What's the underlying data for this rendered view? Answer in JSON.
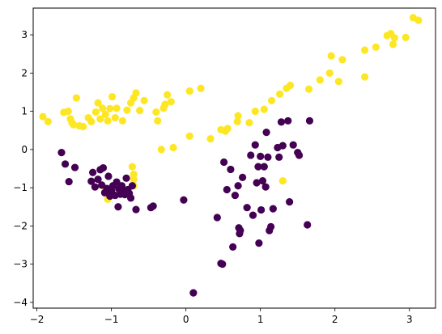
{
  "chart_data": {
    "type": "scatter",
    "title": "",
    "xlabel": "",
    "ylabel": "",
    "xlim": [
      -2.05,
      3.35
    ],
    "ylim": [
      -4.15,
      3.7
    ],
    "x_ticks": [
      -2,
      -1,
      0,
      1,
      2,
      3
    ],
    "y_ticks": [
      -4,
      -3,
      -2,
      -1,
      0,
      1,
      2,
      3
    ],
    "grid": false,
    "legend": "none",
    "colors": {
      "class_0": "#440154",
      "class_1": "#fde725"
    },
    "series": [
      {
        "color": "#fde725",
        "points": [
          [
            -1.92,
            0.86
          ],
          [
            -1.85,
            0.73
          ],
          [
            -1.64,
            0.97
          ],
          [
            -1.58,
            1.0
          ],
          [
            -1.55,
            0.8
          ],
          [
            -1.53,
            0.7
          ],
          [
            -1.51,
            0.65
          ],
          [
            -1.47,
            1.35
          ],
          [
            -1.43,
            0.62
          ],
          [
            -1.38,
            0.6
          ],
          [
            -1.31,
            0.83
          ],
          [
            -1.27,
            0.73
          ],
          [
            -1.21,
            0.98
          ],
          [
            -1.18,
            1.22
          ],
          [
            -1.15,
            0.8
          ],
          [
            -1.12,
            1.08
          ],
          [
            -1.08,
            0.92
          ],
          [
            -1.05,
            0.75
          ],
          [
            -1.02,
            1.07
          ],
          [
            -0.99,
            1.38
          ],
          [
            -0.95,
            0.83
          ],
          [
            -0.93,
            1.08
          ],
          [
            -0.85,
            0.75
          ],
          [
            -0.79,
            1.03
          ],
          [
            -0.74,
            1.22
          ],
          [
            -0.7,
            1.35
          ],
          [
            -0.67,
            1.48
          ],
          [
            -0.62,
            1.02
          ],
          [
            -0.56,
            1.28
          ],
          [
            -0.4,
            0.98
          ],
          [
            -0.38,
            0.75
          ],
          [
            -0.3,
            1.08
          ],
          [
            -0.28,
            1.18
          ],
          [
            -0.25,
            1.43
          ],
          [
            -0.2,
            1.25
          ],
          [
            0.05,
            1.53
          ],
          [
            0.2,
            1.6
          ],
          [
            -0.33,
            0.0
          ],
          [
            -0.17,
            0.05
          ],
          [
            0.05,
            0.35
          ],
          [
            0.33,
            0.28
          ],
          [
            0.47,
            0.52
          ],
          [
            0.53,
            0.48
          ],
          [
            0.56,
            0.55
          ],
          [
            0.69,
            0.73
          ],
          [
            0.7,
            0.88
          ],
          [
            0.85,
            0.7
          ],
          [
            0.93,
            1.0
          ],
          [
            1.05,
            1.05
          ],
          [
            1.15,
            1.28
          ],
          [
            1.26,
            1.45
          ],
          [
            1.35,
            1.6
          ],
          [
            1.4,
            1.68
          ],
          [
            1.65,
            1.58
          ],
          [
            1.8,
            1.82
          ],
          [
            1.93,
            2.0
          ],
          [
            1.95,
            2.45
          ],
          [
            2.05,
            1.78
          ],
          [
            2.1,
            2.35
          ],
          [
            2.4,
            1.9
          ],
          [
            2.4,
            2.6
          ],
          [
            2.55,
            2.68
          ],
          [
            2.7,
            2.98
          ],
          [
            2.75,
            3.03
          ],
          [
            2.78,
            2.75
          ],
          [
            2.8,
            2.92
          ],
          [
            2.95,
            2.93
          ],
          [
            3.05,
            3.45
          ],
          [
            3.12,
            3.38
          ],
          [
            -0.72,
            -0.45
          ],
          [
            -0.7,
            -0.65
          ],
          [
            -0.7,
            -0.78
          ],
          [
            -0.7,
            -0.95
          ],
          [
            -1.12,
            -0.95
          ],
          [
            -0.98,
            -1.12
          ],
          [
            -1.05,
            -1.3
          ],
          [
            1.3,
            -0.82
          ]
        ]
      },
      {
        "color": "#440154",
        "points": [
          [
            -1.67,
            -0.08
          ],
          [
            -1.62,
            -0.38
          ],
          [
            -1.57,
            -0.84
          ],
          [
            -1.49,
            -0.47
          ],
          [
            -1.27,
            -0.83
          ],
          [
            -1.25,
            -0.6
          ],
          [
            -1.22,
            -0.98
          ],
          [
            -1.18,
            -0.78
          ],
          [
            -1.15,
            -0.53
          ],
          [
            -1.13,
            -0.93
          ],
          [
            -1.11,
            -0.48
          ],
          [
            -1.09,
            -1.13
          ],
          [
            -1.06,
            -1.02
          ],
          [
            -1.04,
            -0.7
          ],
          [
            -1.02,
            -1.22
          ],
          [
            -1.0,
            -1.07
          ],
          [
            -0.98,
            -0.95
          ],
          [
            -0.95,
            -1.2
          ],
          [
            -0.93,
            -0.85
          ],
          [
            -0.91,
            -1.5
          ],
          [
            -0.9,
            -1.03
          ],
          [
            -0.88,
            -1.17
          ],
          [
            -0.86,
            -0.95
          ],
          [
            -0.84,
            -1.1
          ],
          [
            -0.82,
            -1.18
          ],
          [
            -0.8,
            -0.75
          ],
          [
            -0.78,
            -1.05
          ],
          [
            -0.76,
            -1.15
          ],
          [
            -0.74,
            -1.27
          ],
          [
            -0.72,
            -0.95
          ],
          [
            -0.67,
            -1.57
          ],
          [
            -0.47,
            -1.52
          ],
          [
            -0.44,
            -1.48
          ],
          [
            -0.03,
            -1.32
          ],
          [
            0.1,
            -3.75
          ],
          [
            0.42,
            -1.78
          ],
          [
            0.47,
            -2.98
          ],
          [
            0.49,
            -3.0
          ],
          [
            0.51,
            -0.33
          ],
          [
            0.55,
            -1.05
          ],
          [
            0.6,
            -0.52
          ],
          [
            0.63,
            -2.55
          ],
          [
            0.66,
            -1.2
          ],
          [
            0.7,
            -0.95
          ],
          [
            0.71,
            -2.05
          ],
          [
            0.72,
            -2.2
          ],
          [
            0.73,
            -2.12
          ],
          [
            0.76,
            -0.73
          ],
          [
            0.82,
            -1.52
          ],
          [
            0.87,
            -0.15
          ],
          [
            0.9,
            -1.72
          ],
          [
            0.93,
            0.12
          ],
          [
            0.95,
            -0.87
          ],
          [
            0.97,
            -0.45
          ],
          [
            0.98,
            -2.45
          ],
          [
            1.0,
            -0.18
          ],
          [
            1.01,
            -1.58
          ],
          [
            1.03,
            -0.82
          ],
          [
            1.05,
            -0.45
          ],
          [
            1.07,
            -0.98
          ],
          [
            1.08,
            0.45
          ],
          [
            1.1,
            -0.2
          ],
          [
            1.12,
            -2.12
          ],
          [
            1.14,
            -2.02
          ],
          [
            1.17,
            -1.55
          ],
          [
            1.23,
            0.05
          ],
          [
            1.25,
            -0.2
          ],
          [
            1.28,
            0.72
          ],
          [
            1.3,
            0.1
          ],
          [
            1.37,
            0.75
          ],
          [
            1.39,
            -1.37
          ],
          [
            1.44,
            0.12
          ],
          [
            1.5,
            -0.08
          ],
          [
            1.52,
            -0.15
          ],
          [
            1.63,
            -1.97
          ],
          [
            1.66,
            0.75
          ]
        ]
      }
    ]
  }
}
